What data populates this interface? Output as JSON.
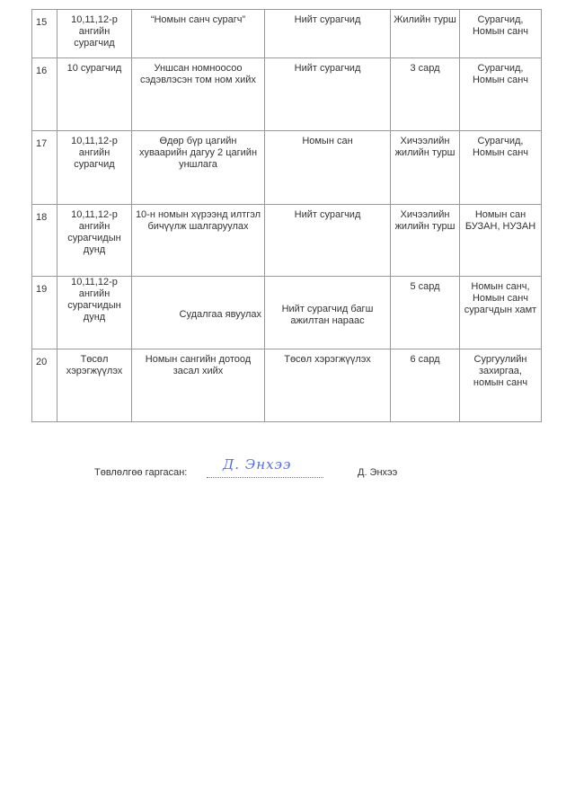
{
  "table": {
    "rows": [
      {
        "no": "15",
        "participants": "10,11,12-р ангийн сурагчид",
        "activity": "“Номын санч сурагч”",
        "target": "Нийт сурагчид",
        "time": "Жилийн турш",
        "responsible": "Сурагчид, Номын санч"
      },
      {
        "no": "16",
        "participants": "10 сурагчид",
        "activity": "Уншсан номноосоо сэдэвлэсэн том ном хийх",
        "target": "Нийт сурагчид",
        "time": "3 сард",
        "responsible": "Сурагчид, Номын санч"
      },
      {
        "no": "17",
        "participants": "10,11,12-р ангийн сурагчид",
        "activity": "Өдөр бүр цагийн хуваарийн дагуу 2 цагийн уншлага",
        "target": "Номын сан",
        "time": "Хичээлийн жилийн турш",
        "responsible": "Сурагчид, Номын санч"
      },
      {
        "no": "18",
        "participants": "10,11,12-р ангийн сурагчидын дунд",
        "activity": "10-н номын хүрээнд илтгэл бичүүлж шалгаруулах",
        "target": "Нийт сурагчид",
        "time": "Хичээлийн жилийн турш",
        "responsible": "Номын сан БУЗАН, НУЗАН"
      },
      {
        "no": "19",
        "participants": "10,11,12-р ангийн сурагчидын дунд",
        "activity": "Судалгаа явуулах",
        "target": "Нийт сурагчид багш ажилтан нараас",
        "time": "5 сард",
        "responsible": "Номын санч, Номын санч сурагчдын хамт"
      },
      {
        "no": "20",
        "participants": "Төсөл хэрэгжүүлэх",
        "activity": "Номын сангийн дотоод засал хийх",
        "target": "Төсөл хэрэгжүүлэх",
        "time": "6 сард",
        "responsible": "Сургуулийн захиргаа, номын санч"
      }
    ]
  },
  "footer": {
    "label": "Төвлөлгөө гаргасан:",
    "signature": "Д. Энхээ",
    "name": "Д. Энхээ"
  }
}
